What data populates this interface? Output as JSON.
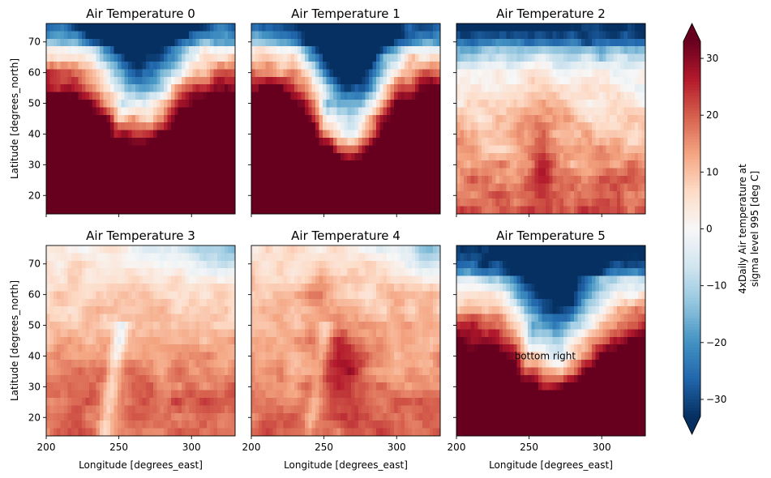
{
  "chart_data": {
    "type": "heatmap",
    "panels": [
      {
        "title": "Air Temperature 0",
        "label": "Air Temperature 0"
      },
      {
        "title": "Air Temperature 1",
        "label": "Air Temperature 1"
      },
      {
        "title": "Air Temperature 2",
        "label": "Air Temperature 2"
      },
      {
        "title": "Air Temperature 3",
        "label": "Air Temperature 3"
      },
      {
        "title": "Air Temperature 4",
        "label": "Air Temperature 4"
      },
      {
        "title": "Air Temperature 5",
        "label": "Air Temperature 5",
        "annotation": {
          "text": "bottom right",
          "x": 240,
          "y": 40
        }
      }
    ],
    "xlabel": "Longitude [degrees_east]",
    "ylabel": "Latitude [degrees_north]",
    "xlim": [
      200,
      330
    ],
    "ylim": [
      14,
      76
    ],
    "xticks": [
      200,
      250,
      300
    ],
    "yticks": [
      20,
      30,
      40,
      50,
      60,
      70
    ],
    "grid": false,
    "colorbar": {
      "label_line1": "4xDaily Air temperature at",
      "label_line2": "sigma level 995 [deg C]",
      "vmin": -33,
      "vmax": 33,
      "extend": "both",
      "ticks": [
        -30,
        -20,
        -10,
        0,
        10,
        20,
        30
      ],
      "colormap": "RdBu_r"
    },
    "colors": {
      "cold": "#053061",
      "neutral": "#f7f7f7",
      "warm": "#67001f"
    }
  }
}
